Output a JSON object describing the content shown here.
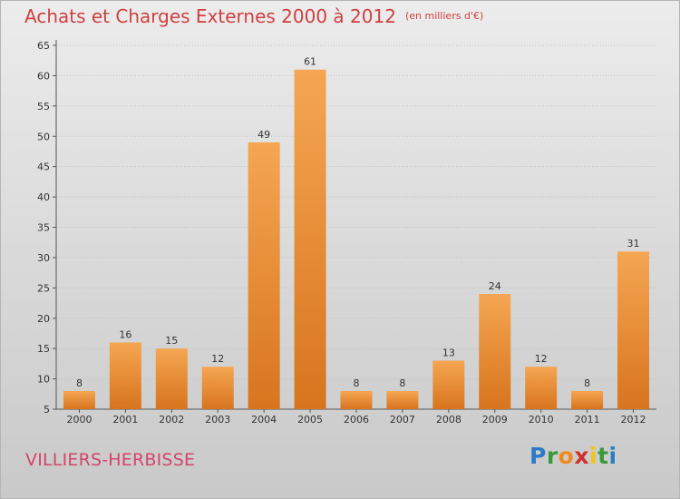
{
  "header": {
    "title": "Achats et Charges Externes 2000 à 2012",
    "unit": "(en milliers d'€)"
  },
  "footer": {
    "commune": "VILLIERS-HERBISSE",
    "logo_letters": [
      {
        "ch": "P",
        "color": "#2b7cc6"
      },
      {
        "ch": "r",
        "color": "#3a9a3a"
      },
      {
        "ch": "o",
        "color": "#f08a1c"
      },
      {
        "ch": "x",
        "color": "#d0312d"
      },
      {
        "ch": "i",
        "color": "#f0c419"
      },
      {
        "ch": "t",
        "color": "#3a9a3a"
      },
      {
        "ch": "i",
        "color": "#2b7cc6"
      }
    ]
  },
  "colors": {
    "bar_top": "#f5a652",
    "bar_bottom": "#d8741e",
    "title": "#d04040",
    "commune": "#d4456a"
  },
  "chart_data": {
    "type": "bar",
    "title": "Achats et Charges Externes 2000 à 2012",
    "subtitle": "(en milliers d'€)",
    "categories": [
      "2000",
      "2001",
      "2002",
      "2003",
      "2004",
      "2005",
      "2006",
      "2007",
      "2008",
      "2009",
      "2010",
      "2011",
      "2012"
    ],
    "values": [
      8,
      16,
      15,
      12,
      49,
      61,
      8,
      8,
      13,
      24,
      12,
      8,
      31
    ],
    "ylim": [
      5,
      65
    ],
    "yticks": [
      5,
      10,
      15,
      20,
      25,
      30,
      35,
      40,
      45,
      50,
      55,
      60,
      65
    ],
    "grid": true,
    "xlabel": "",
    "ylabel": ""
  }
}
